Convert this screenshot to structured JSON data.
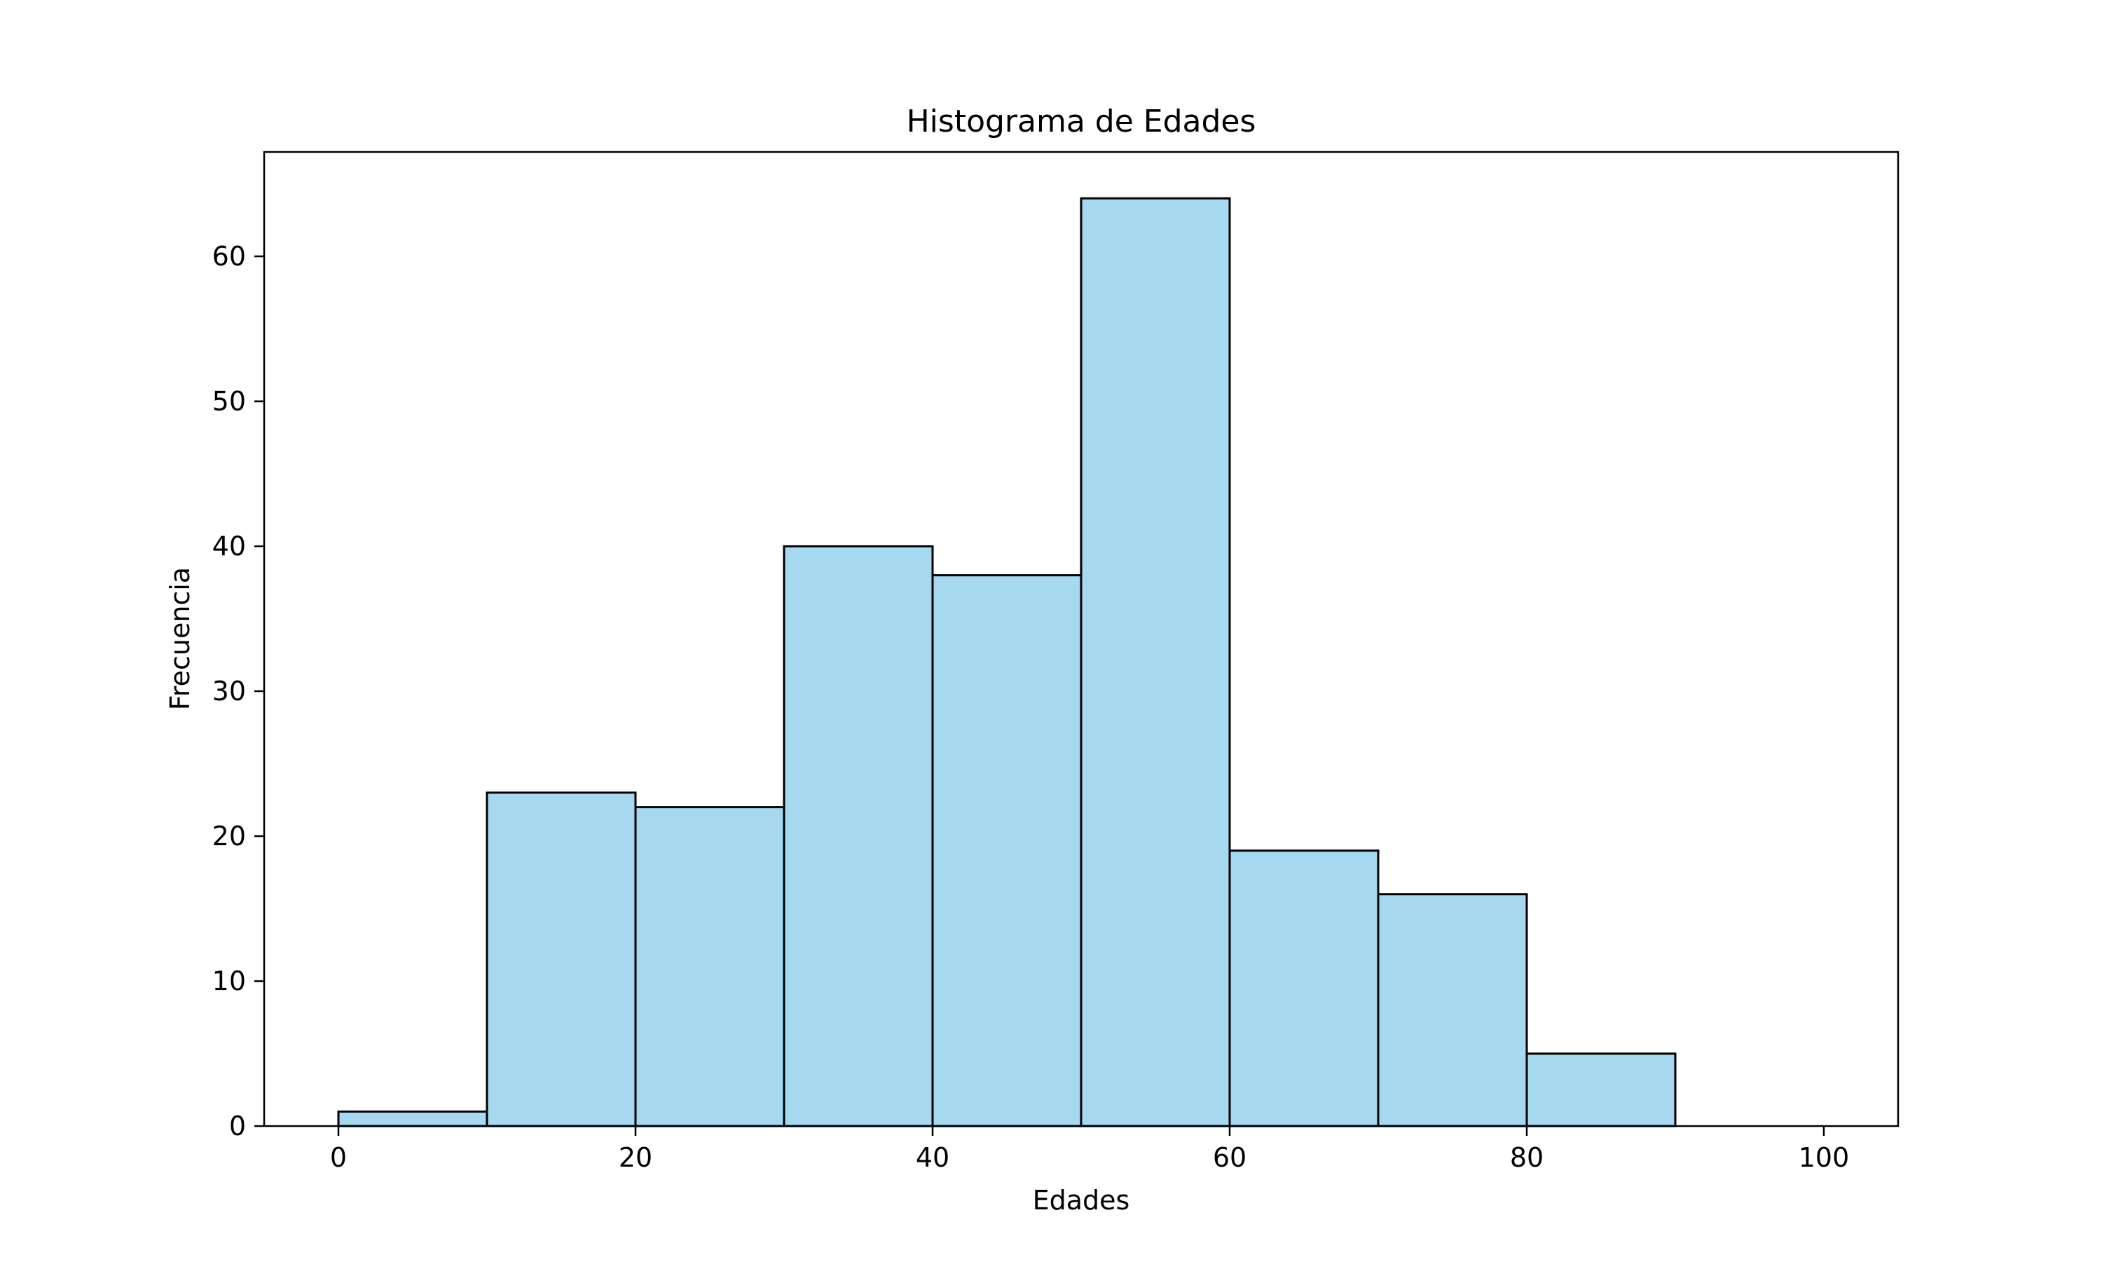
{
  "chart_data": {
    "type": "bar",
    "title": "Histograma de Edades",
    "xlabel": "Edades",
    "ylabel": "Frecuencia",
    "bin_edges": [
      0,
      10,
      20,
      30,
      40,
      50,
      60,
      70,
      80,
      90,
      100
    ],
    "values": [
      1,
      23,
      22,
      40,
      38,
      64,
      19,
      16,
      5,
      0
    ],
    "xlim": [
      -5,
      105
    ],
    "ylim": [
      0,
      67.2
    ],
    "xticks": [
      0,
      20,
      40,
      60,
      80,
      100
    ],
    "yticks": [
      0,
      10,
      20,
      30,
      40,
      50,
      60
    ],
    "grid": false,
    "bar_color": "#a6d9ef",
    "edge_color": "#000000"
  }
}
